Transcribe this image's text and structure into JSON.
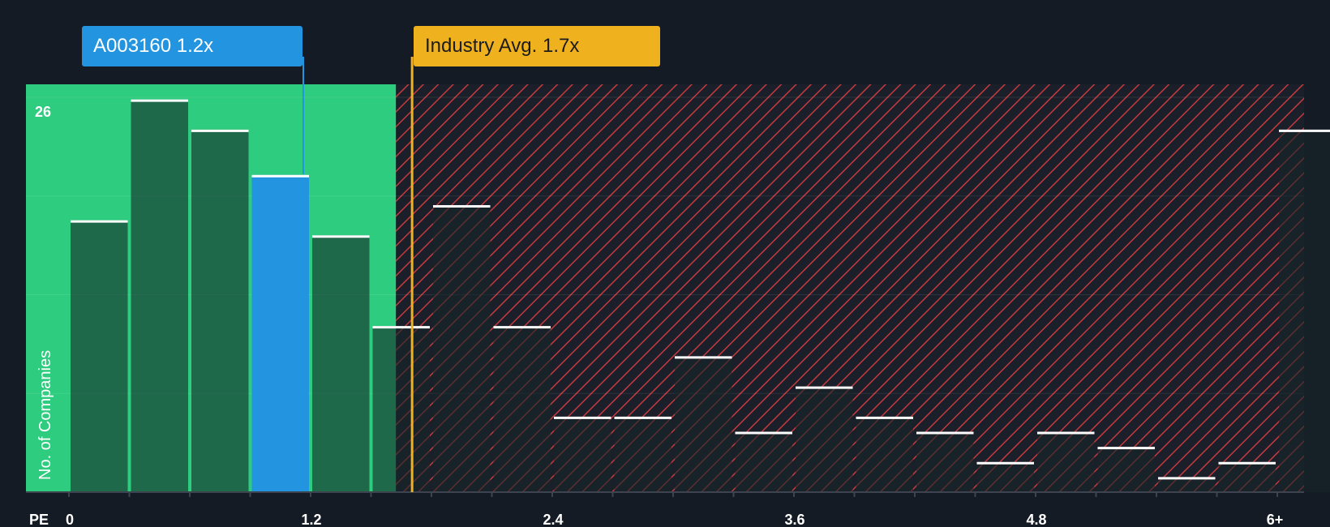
{
  "chart_data": {
    "type": "bar",
    "xlabel": "PE",
    "ylabel": "No. of Companies",
    "x_ticks": [
      "0",
      "1.2",
      "2.4",
      "3.6",
      "4.8",
      "6+"
    ],
    "y_ticks": [
      "26"
    ],
    "ylim": [
      0,
      27
    ],
    "categories": [
      "0-0.3",
      "0.3-0.6",
      "0.6-0.9",
      "0.9-1.2",
      "1.2-1.5",
      "1.5-1.8",
      "1.8-2.1",
      "2.1-2.4",
      "2.4-2.7",
      "2.7-3.0",
      "3.0-3.3",
      "3.3-3.6",
      "3.6-3.9",
      "3.9-4.2",
      "4.2-4.5",
      "4.5-4.8",
      "4.8-5.1",
      "5.1-5.4",
      "5.4-5.7",
      "5.7-6.0",
      "6+"
    ],
    "values": [
      18,
      26,
      24,
      21,
      17,
      11,
      19,
      11,
      5,
      5,
      9,
      4,
      7,
      5,
      4,
      2,
      4,
      3,
      1,
      2,
      24
    ],
    "highlight_index": 3,
    "company": {
      "ticker": "A003160",
      "value": 1.2,
      "label": "A003160 1.2x"
    },
    "industry": {
      "value": 1.7,
      "label": "Industry Avg. 1.7x"
    },
    "colors": {
      "background": "#151b24",
      "fair_zone": "#2ecc7f",
      "bar_dark": "#1f4a3d",
      "bar_highlight": "#2394e0",
      "hatch": "#c43a3e",
      "industry": "#f0b11f"
    }
  }
}
